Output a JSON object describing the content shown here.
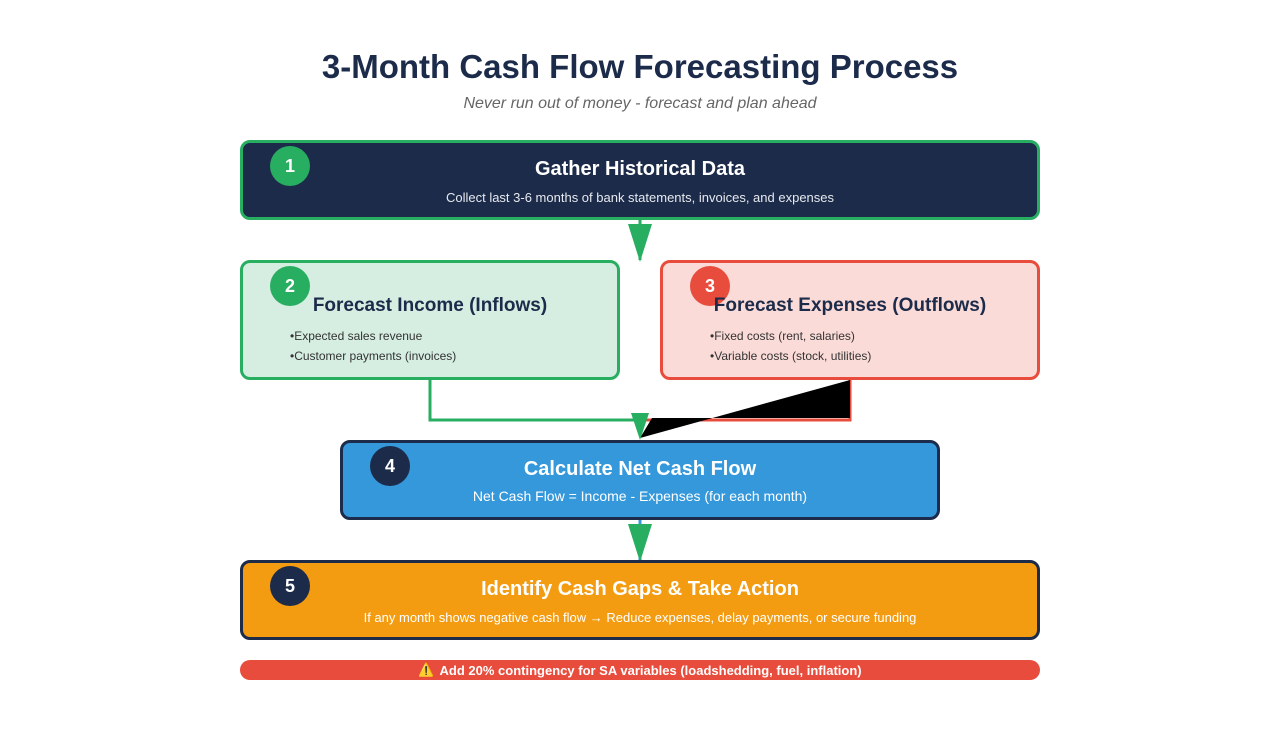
{
  "header": {
    "title": "3-Month Cash Flow Forecasting Process",
    "subtitle": "Never run out of money - forecast and plan ahead"
  },
  "steps": [
    {
      "number": "1",
      "title": "Gather Historical Data",
      "description": "Collect last 3-6 months of bank statements, invoices, and expenses",
      "colors": {
        "fill": "#1c2b4a",
        "border": "#27ae60",
        "badge": "#27ae60",
        "text": "#ffffff"
      }
    },
    {
      "number": "2",
      "title": "Forecast Income (Inflows)",
      "bullets": [
        "Expected sales revenue",
        "Customer payments (invoices)"
      ],
      "colors": {
        "fill": "#d5eee1",
        "border": "#27ae60",
        "badge": "#27ae60",
        "text": "#1c2b4a"
      }
    },
    {
      "number": "3",
      "title": "Forecast Expenses (Outflows)",
      "bullets": [
        "Fixed costs (rent, salaries)",
        "Variable costs (stock, utilities)"
      ],
      "colors": {
        "fill": "#fadbd8",
        "border": "#e74c3c",
        "badge": "#e74c3c",
        "text": "#1c2b4a"
      }
    },
    {
      "number": "4",
      "title": "Calculate Net Cash Flow",
      "description": "Net Cash Flow = Income - Expenses (for each month)",
      "colors": {
        "fill": "#3498db",
        "border": "#1c2b4a",
        "badge": "#1c2b4a",
        "text": "#ffffff"
      }
    },
    {
      "number": "5",
      "title": "Identify Cash Gaps & Take Action",
      "description": "If any month shows negative cash flow → Reduce expenses, delay payments, or secure funding",
      "colors": {
        "fill": "#f39c12",
        "border": "#1c2b4a",
        "badge": "#1c2b4a",
        "text": "#ffffff"
      }
    }
  ],
  "warning": {
    "icon": "warning-icon",
    "icon_glyph": "⚠️",
    "text": "Add 20% contingency for SA variables (loadshedding, fuel, inflation)",
    "color": "#e74c3c"
  },
  "connector_colors": {
    "green": "#27ae60",
    "red": "#e74c3c",
    "blue": "#3498db"
  }
}
